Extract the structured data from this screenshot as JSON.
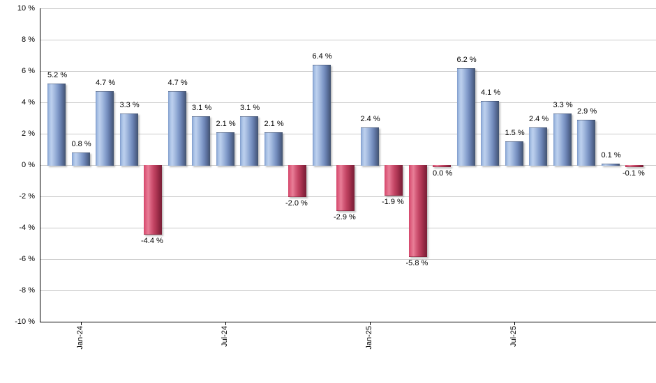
{
  "chart_data": {
    "type": "bar",
    "title": "",
    "xlabel": "",
    "ylabel": "",
    "ylim": [
      -10,
      10
    ],
    "y_tick_step": 2,
    "y_tick_labels": [
      "10 %",
      "8 %",
      "6 %",
      "4 %",
      "2 %",
      "0 %",
      "-2 %",
      "-4 %",
      "-6 %",
      "-8 %",
      "-10 %"
    ],
    "grid": "horizontal",
    "legend": "none",
    "values": [
      5.2,
      0.8,
      4.7,
      3.3,
      -4.4,
      4.7,
      3.1,
      2.1,
      3.1,
      2.1,
      -2.0,
      6.4,
      -2.9,
      2.4,
      -1.9,
      -5.8,
      0.0,
      6.2,
      4.1,
      1.5,
      2.4,
      3.3,
      2.9,
      0.1,
      -0.1
    ],
    "value_labels": [
      "5.2 %",
      "0.8 %",
      "4.7 %",
      "3.3 %",
      "-4.4 %",
      "4.7 %",
      "3.1 %",
      "2.1 %",
      "3.1 %",
      "2.1 %",
      "-2.0 %",
      "6.4 %",
      "-2.9 %",
      "2.4 %",
      "-1.9 %",
      "-5.8 %",
      "0.0 %",
      "6.2 %",
      "4.1 %",
      "1.5 %",
      "2.4 %",
      "3.3 %",
      "2.9 %",
      "0.1 %",
      "-0.1 %"
    ],
    "bar_color_type": [
      "blue",
      "blue",
      "blue",
      "blue",
      "red",
      "blue",
      "blue",
      "blue",
      "blue",
      "blue",
      "red",
      "blue",
      "red",
      "blue",
      "red",
      "red",
      "red",
      "blue",
      "blue",
      "blue",
      "blue",
      "blue",
      "blue",
      "blue",
      "red"
    ],
    "x_ticks": [
      {
        "index": 1,
        "label": "Jan-24"
      },
      {
        "index": 7,
        "label": "Jul-24"
      },
      {
        "index": 13,
        "label": "Jan-25"
      },
      {
        "index": 19,
        "label": "Jul-25"
      }
    ],
    "colors": {
      "bar_positive_light": "#bdd0ee",
      "bar_positive_mid": "#7e9bcc",
      "bar_positive_dark": "#42536f",
      "bar_negative_light": "#e87e97",
      "bar_negative_mid": "#d5456b",
      "bar_negative_dark": "#7a1f37",
      "gridline": "#c9c9c9",
      "axis": "#000000",
      "label_text": "#000000"
    }
  }
}
